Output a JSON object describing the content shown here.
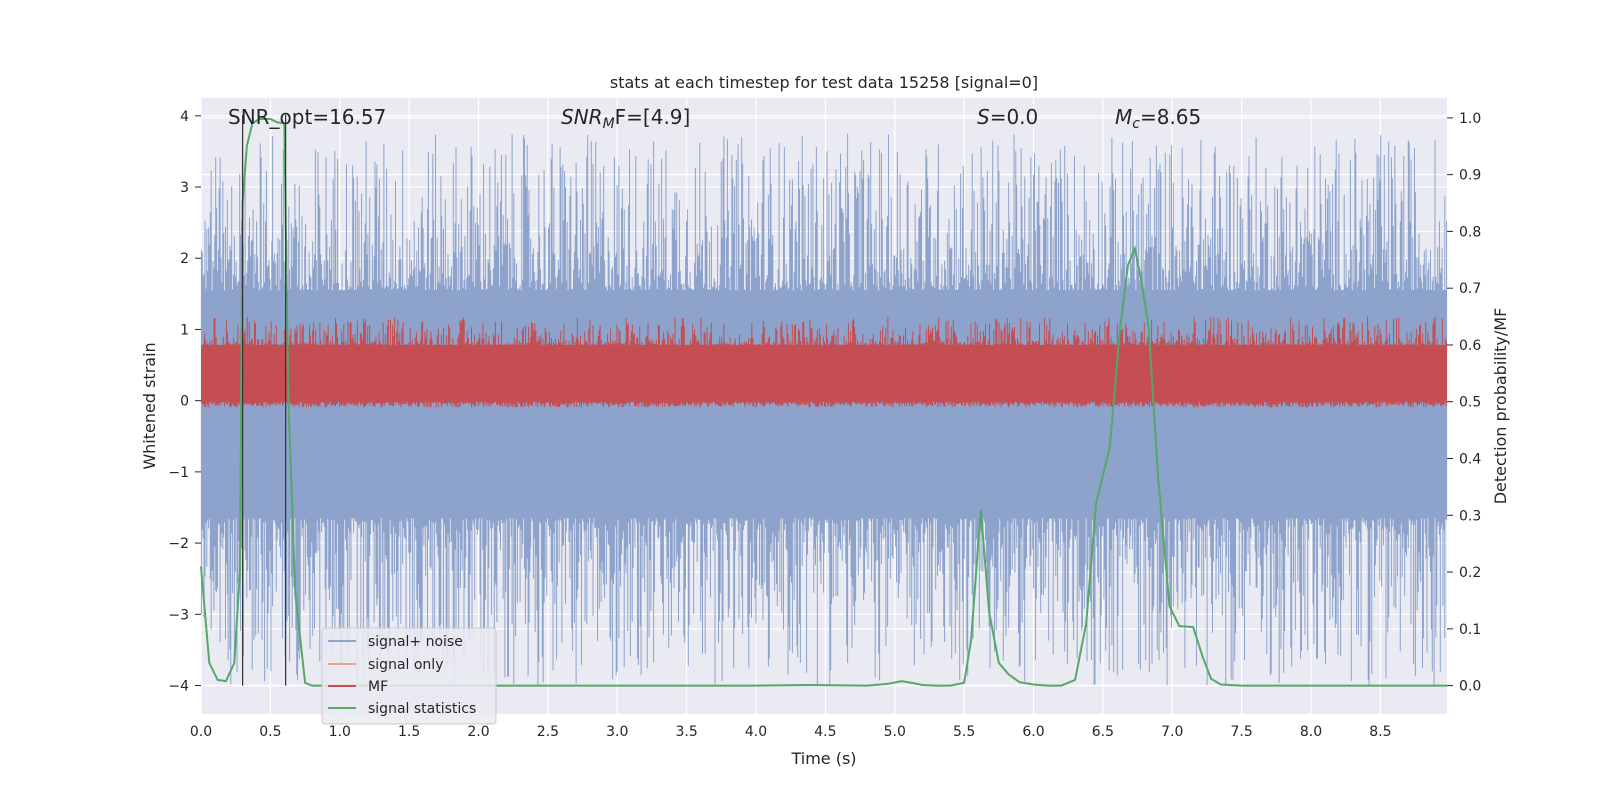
{
  "chart_data": {
    "type": "line",
    "title": "stats at each timestep for test data 15258 [signal=0]",
    "xlabel": "Time (s)",
    "ylabel": "Whitened strain",
    "y2label": "Detection probability/MF",
    "xlim": [
      0,
      8.98
    ],
    "ylim": [
      -4.4,
      4.25
    ],
    "y2lim": [
      -0.05,
      1.035
    ],
    "xticks": [
      "0.0",
      "0.5",
      "1.0",
      "1.5",
      "2.0",
      "2.5",
      "3.0",
      "3.5",
      "4.0",
      "4.5",
      "5.0",
      "5.5",
      "6.0",
      "6.5",
      "7.0",
      "7.5",
      "8.0",
      "8.5"
    ],
    "yticks": [
      "−4",
      "−3",
      "−2",
      "−1",
      "0",
      "1",
      "2",
      "3",
      "4"
    ],
    "y2ticks": [
      "0.0",
      "0.1",
      "0.2",
      "0.3",
      "0.4",
      "0.5",
      "0.6",
      "0.7",
      "0.8",
      "0.9",
      "1.0"
    ],
    "grid": true,
    "legend_position": "lower-left",
    "annotations": [
      {
        "text": "SNR_opt=16.57",
        "x": 0.2,
        "y_axis_value": 3.9
      },
      {
        "text": "SNR",
        "sub": "M",
        "tail": "F=[4.9]",
        "x": 2.6
      },
      {
        "text": "S",
        "tail": "=0.0",
        "x": 5.6
      },
      {
        "text": "M",
        "sub": "c",
        "tail": "=8.65",
        "x": 6.6
      }
    ],
    "vertical_lines_x": [
      0.3,
      0.61
    ],
    "series": [
      {
        "name": "signal+ noise",
        "color": "#8da3cc",
        "description_values": {
          "band_min": -1.65,
          "band_max": 1.55,
          "spike_min": -4.0,
          "spike_max": 3.75
        }
      },
      {
        "name": "signal only",
        "color": "#e8a48a",
        "values": []
      },
      {
        "name": "MF",
        "color": "#c44e52",
        "axis": "right",
        "description_values": {
          "band_min": 0.5,
          "band_max": 0.6
        }
      },
      {
        "name": "signal statistics",
        "color": "#55a868",
        "axis": "right",
        "x": [
          0.0,
          0.06,
          0.12,
          0.18,
          0.24,
          0.28,
          0.3,
          0.33,
          0.37,
          0.42,
          0.5,
          0.55,
          0.6,
          0.63,
          0.68,
          0.75,
          0.8,
          1.0,
          2.0,
          3.0,
          4.0,
          4.4,
          4.8,
          4.95,
          5.05,
          5.12,
          5.2,
          5.3,
          5.4,
          5.5,
          5.55,
          5.62,
          5.68,
          5.75,
          5.82,
          5.9,
          6.0,
          6.1,
          6.2,
          6.3,
          6.38,
          6.45,
          6.55,
          6.62,
          6.68,
          6.73,
          6.78,
          6.83,
          6.9,
          6.98,
          7.05,
          7.15,
          7.22,
          7.28,
          7.35,
          7.5,
          8.0,
          8.5,
          8.98
        ],
        "y": [
          0.21,
          0.04,
          0.01,
          0.008,
          0.04,
          0.2,
          0.85,
          0.95,
          0.99,
          0.998,
          0.998,
          0.992,
          0.99,
          0.5,
          0.16,
          0.005,
          0.0,
          0.0,
          0.0,
          0.0,
          0.0,
          0.001,
          0.0,
          0.003,
          0.008,
          0.005,
          0.001,
          0.0,
          0.0,
          0.005,
          0.08,
          0.31,
          0.13,
          0.04,
          0.02,
          0.006,
          0.002,
          0.0,
          0.0,
          0.01,
          0.11,
          0.32,
          0.42,
          0.62,
          0.74,
          0.77,
          0.71,
          0.63,
          0.36,
          0.14,
          0.105,
          0.103,
          0.05,
          0.012,
          0.002,
          0.0,
          0.0,
          0.0,
          0.0
        ]
      }
    ]
  }
}
